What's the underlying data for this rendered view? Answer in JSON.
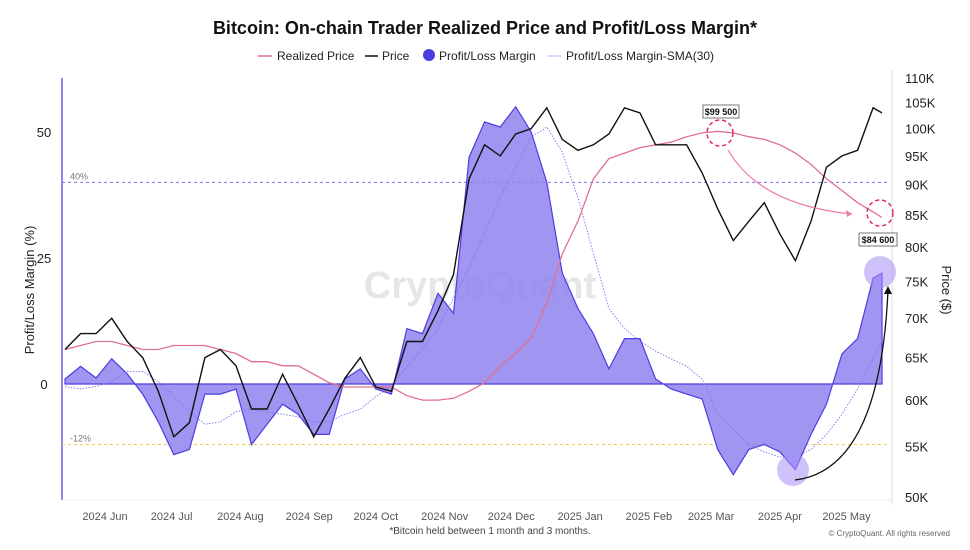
{
  "chart_data": {
    "type": "line",
    "title": "Bitcoin: On-chain Trader Realized Price and Profit/Loss Margin*",
    "footnote": "*Bitcoin held between 1 month and 3 months.",
    "copyright": "© CryptoQuant. All rights reserved",
    "watermark": "CryptoQuant",
    "y_left": {
      "label": "Profit/Loss Margin (%)",
      "range": [
        -23,
        60.7
      ],
      "ticks": [
        0,
        25,
        50
      ]
    },
    "y_right": {
      "label": "Price ($)",
      "scale": "log",
      "range": [
        50000,
        110000
      ],
      "ticks": [
        50000,
        55000,
        60000,
        65000,
        70000,
        75000,
        80000,
        85000,
        90000,
        95000,
        100000,
        105000,
        110000
      ],
      "tick_labels": [
        "50K",
        "55K",
        "60K",
        "65K",
        "70K",
        "75K",
        "80K",
        "85K",
        "90K",
        "95K",
        "100K",
        "105K",
        "110K"
      ]
    },
    "x_ticks": [
      {
        "date": "2024-06-01",
        "label": "2024 Jun"
      },
      {
        "date": "2024-07-01",
        "label": "2024 Jul"
      },
      {
        "date": "2024-08-01",
        "label": "2024 Aug"
      },
      {
        "date": "2024-09-01",
        "label": "2024 Sep"
      },
      {
        "date": "2024-10-01",
        "label": "2024 Oct"
      },
      {
        "date": "2024-11-01",
        "label": "2024 Nov"
      },
      {
        "date": "2024-12-01",
        "label": "2024 Dec"
      },
      {
        "date": "2025-01-01",
        "label": "2025 Jan"
      },
      {
        "date": "2025-02-01",
        "label": "2025 Feb"
      },
      {
        "date": "2025-03-01",
        "label": "2025 Mar"
      },
      {
        "date": "2025-04-01",
        "label": "2025 Apr"
      },
      {
        "date": "2025-05-01",
        "label": "2025 May"
      }
    ],
    "reference_lines": [
      {
        "value": 40,
        "label": "40%",
        "color": "#7b72f0"
      },
      {
        "value": -12,
        "label": "-12%",
        "color": "#e8cf4a"
      }
    ],
    "legend": [
      "Realized Price",
      "Price",
      "Profit/Loss Margin",
      "Profit/Loss Margin-SMA(30)"
    ],
    "legend_placement": "top",
    "grid": false,
    "colors": {
      "realized": "#e0708f",
      "price": "#111111",
      "margin_fill": "#8f84ee",
      "margin_stroke": "#4b3de0",
      "sma": "#7b72f0"
    },
    "annotations": [
      {
        "label": "$99 500",
        "date": "2025-02-27",
        "value": 99500
      },
      {
        "label": "$84 600",
        "date": "2025-05-17",
        "value": 84600
      }
    ],
    "dates": [
      "2024-05-14",
      "2024-05-21",
      "2024-05-28",
      "2024-06-04",
      "2024-06-11",
      "2024-06-18",
      "2024-06-25",
      "2024-07-02",
      "2024-07-09",
      "2024-07-16",
      "2024-07-23",
      "2024-07-30",
      "2024-08-06",
      "2024-08-13",
      "2024-08-20",
      "2024-08-27",
      "2024-09-03",
      "2024-09-10",
      "2024-09-17",
      "2024-09-24",
      "2024-10-01",
      "2024-10-08",
      "2024-10-15",
      "2024-10-22",
      "2024-10-29",
      "2024-11-05",
      "2024-11-12",
      "2024-11-19",
      "2024-11-26",
      "2024-12-03",
      "2024-12-10",
      "2024-12-17",
      "2024-12-24",
      "2024-12-31",
      "2025-01-07",
      "2025-01-14",
      "2025-01-21",
      "2025-01-28",
      "2025-02-04",
      "2025-02-11",
      "2025-02-18",
      "2025-02-25",
      "2025-03-04",
      "2025-03-11",
      "2025-03-18",
      "2025-03-25",
      "2025-04-01",
      "2025-04-08",
      "2025-04-15",
      "2025-04-22",
      "2025-04-29",
      "2025-05-06",
      "2025-05-13",
      "2025-05-17"
    ],
    "series": [
      {
        "name": "Realized Price",
        "axis": "right",
        "unit": "K$",
        "values": [
          66,
          66.5,
          67,
          67,
          66.5,
          66,
          66,
          66.5,
          66.5,
          66.5,
          66,
          65.5,
          64.5,
          64.5,
          64,
          64,
          63,
          62,
          61.5,
          61.5,
          61.5,
          61.5,
          60.5,
          60,
          60,
          60.2,
          61,
          62,
          64,
          65.5,
          67.5,
          72,
          79,
          84,
          91,
          94.5,
          95.5,
          96.5,
          97,
          97.5,
          98.5,
          99.2,
          99.5,
          99.2,
          98.5,
          98,
          97,
          95.5,
          93.5,
          91,
          89,
          87,
          85.5,
          84.6
        ]
      },
      {
        "name": "Price",
        "axis": "right",
        "unit": "K$",
        "values": [
          66,
          68,
          68,
          70,
          67,
          65,
          61,
          56,
          57.5,
          65,
          66,
          64,
          59,
          59,
          63,
          59.5,
          56,
          59,
          62.5,
          65,
          61.5,
          61,
          67,
          67,
          71,
          76,
          91,
          97,
          95,
          99,
          100,
          104,
          98,
          96,
          97,
          99,
          104,
          103,
          97,
          97,
          97,
          92,
          86,
          81,
          84,
          87,
          82,
          78,
          84,
          93,
          95,
          96,
          104,
          103
        ]
      },
      {
        "name": "Profit/Loss Margin",
        "axis": "left",
        "unit": "%",
        "values": [
          1,
          3.5,
          1.2,
          5,
          2,
          -2,
          -7.5,
          -14,
          -13,
          -2,
          -2,
          -1,
          -12,
          -8,
          -4,
          -6,
          -10,
          -10,
          1,
          3,
          -1,
          -2,
          11,
          10,
          18,
          14,
          45,
          52,
          51,
          55,
          50,
          40,
          22,
          15,
          10,
          3,
          9,
          9,
          1,
          -1,
          -2,
          -3,
          -13,
          -18,
          -13,
          -12,
          -13.5,
          -17,
          -10,
          -4,
          6,
          9,
          21,
          22
        ]
      },
      {
        "name": "Profit/Loss Margin-SMA(30)",
        "axis": "left",
        "unit": "%",
        "values": [
          -0.5,
          -1,
          -0.5,
          0.5,
          2.5,
          2.5,
          0.5,
          -2.5,
          -5.5,
          -8,
          -7.5,
          -5.5,
          -5,
          -5.5,
          -6,
          -6.5,
          -7.5,
          -7.5,
          -6,
          -5,
          -2.5,
          -0.5,
          3.5,
          7,
          11,
          17,
          23,
          30,
          37,
          43,
          49,
          51,
          46,
          37,
          26,
          15,
          11,
          8.5,
          6.5,
          5,
          3.5,
          1,
          -6,
          -9,
          -12,
          -13.5,
          -14.5,
          -14.5,
          -13,
          -10,
          -6,
          -1,
          5,
          8.7
        ]
      }
    ]
  }
}
